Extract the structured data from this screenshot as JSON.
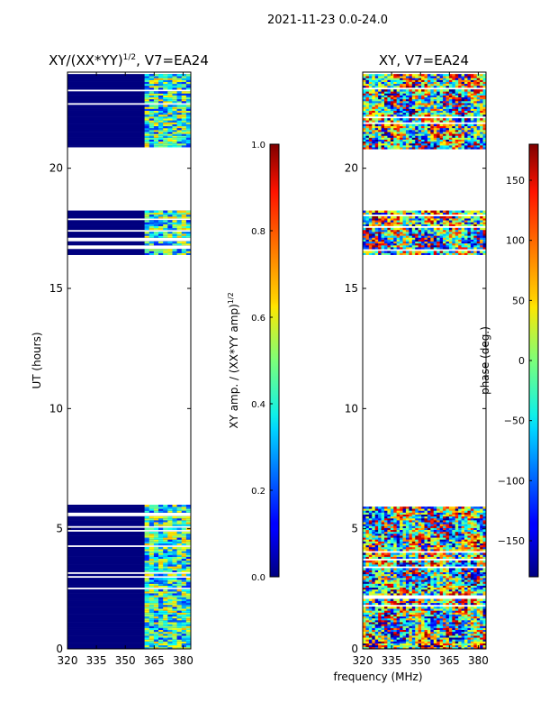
{
  "figure": {
    "suptitle": "2021-11-23 0.0-24.0",
    "xlabel_shared": "frequency (MHz)"
  },
  "chart_data": [
    {
      "type": "heatmap",
      "title": "XY/(XX*YY)^1/2, V7=EA24",
      "title_main": "XY/(XX*YY)",
      "title_sup": "1/2",
      "title_tail": ", V7=EA24",
      "ylabel": "UT (hours)",
      "xlim": [
        320,
        384
      ],
      "ylim": [
        0,
        24
      ],
      "xticks": [
        320,
        335,
        350,
        365,
        380
      ],
      "yticks": [
        0,
        5,
        10,
        15,
        20
      ],
      "data_hour_ranges": [
        [
          0.0,
          6.0
        ],
        [
          16.4,
          18.2
        ],
        [
          20.8,
          23.9
        ]
      ],
      "active_freq_range": [
        360,
        384
      ],
      "colorbar": {
        "label": "XY amp. / (XX*YY amp)^1/2",
        "label_main": "XY amp. / (XX*YY amp)",
        "label_sup": "1/2",
        "range": [
          0.0,
          1.0
        ],
        "ticks": [
          "0.0",
          "0.2",
          "0.4",
          "0.6",
          "0.8",
          "1.0"
        ]
      }
    },
    {
      "type": "heatmap",
      "title": "XY, V7=EA24",
      "xlim": [
        320,
        384
      ],
      "ylim": [
        0,
        24
      ],
      "xticks": [
        320,
        335,
        350,
        365,
        380
      ],
      "yticks": [
        0,
        5,
        10,
        15,
        20
      ],
      "data_hour_ranges": [
        [
          0.0,
          6.0
        ],
        [
          16.4,
          18.2
        ],
        [
          20.8,
          23.9
        ]
      ],
      "colorbar": {
        "label": "phase (deg.)",
        "range": [
          -180,
          180
        ],
        "ticks": [
          "150",
          "100",
          "50",
          "0",
          "−50",
          "−100",
          "−150"
        ]
      }
    }
  ]
}
